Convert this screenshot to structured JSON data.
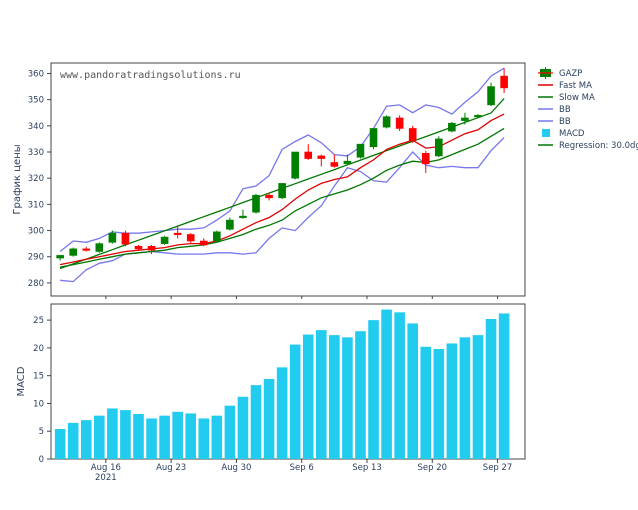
{
  "watermark": "www.pandoratradingsolutions.ru",
  "colors": {
    "up": "#008000",
    "down": "#ff0000",
    "fast_ma": "#dd0000",
    "slow_ma": "#007700",
    "bb": "#7777ee",
    "macd": "#22ccee",
    "regression": "#007700"
  },
  "chart_data": [
    {
      "type": "candlestick",
      "ylabel": "График цены",
      "ylim": [
        275,
        364
      ],
      "yticks": [
        280,
        290,
        300,
        310,
        320,
        330,
        340,
        350,
        360
      ],
      "xlim": [
        -0.7,
        35.6
      ],
      "xticks": [
        {
          "x": 3.5,
          "label": "Aug 16",
          "sub": "2021"
        },
        {
          "x": 8.5,
          "label": "Aug 23",
          "sub": ""
        },
        {
          "x": 13.5,
          "label": "Aug 30",
          "sub": ""
        },
        {
          "x": 18.5,
          "label": "Sep 6",
          "sub": ""
        },
        {
          "x": 23.5,
          "label": "Sep 13",
          "sub": ""
        },
        {
          "x": 28.5,
          "label": "Sep 20",
          "sub": ""
        },
        {
          "x": 33.5,
          "label": "Sep 27",
          "sub": ""
        }
      ],
      "legend": [
        "GAZP",
        "Fast MA",
        "Slow MA",
        "BB",
        "BB",
        "MACD",
        "Regression: 30.0dg"
      ],
      "candles": [
        {
          "o": 289.5,
          "h": 290.5,
          "l": 288.5,
          "c": 290.5
        },
        {
          "o": 290.5,
          "h": 293.5,
          "l": 290.0,
          "c": 293.0
        },
        {
          "o": 293.0,
          "h": 293.8,
          "l": 292.0,
          "c": 292.8
        },
        {
          "o": 292.0,
          "h": 295.5,
          "l": 291.5,
          "c": 295.0
        },
        {
          "o": 295.5,
          "h": 300.0,
          "l": 295.0,
          "c": 299.0
        },
        {
          "o": 299.0,
          "h": 300.0,
          "l": 294.0,
          "c": 294.8
        },
        {
          "o": 294.0,
          "h": 294.5,
          "l": 292.5,
          "c": 293.0
        },
        {
          "o": 294.0,
          "h": 294.5,
          "l": 291.0,
          "c": 292.5
        },
        {
          "o": 295.0,
          "h": 298.0,
          "l": 294.5,
          "c": 297.5
        },
        {
          "o": 299.0,
          "h": 302.0,
          "l": 297.0,
          "c": 298.8
        },
        {
          "o": 298.5,
          "h": 299.0,
          "l": 295.0,
          "c": 296.0
        },
        {
          "o": 296.0,
          "h": 297.0,
          "l": 294.0,
          "c": 294.5
        },
        {
          "o": 296.0,
          "h": 300.0,
          "l": 295.5,
          "c": 299.5
        },
        {
          "o": 300.5,
          "h": 305.0,
          "l": 300.0,
          "c": 304.0
        },
        {
          "o": 305.5,
          "h": 308.0,
          "l": 304.5,
          "c": 305.5
        },
        {
          "o": 307.0,
          "h": 314.0,
          "l": 306.5,
          "c": 313.5
        },
        {
          "o": 313.5,
          "h": 314.5,
          "l": 311.5,
          "c": 312.5
        },
        {
          "o": 312.5,
          "h": 318.0,
          "l": 312.0,
          "c": 318.0
        },
        {
          "o": 320.0,
          "h": 330.0,
          "l": 319.5,
          "c": 330.0
        },
        {
          "o": 330.0,
          "h": 333.0,
          "l": 327.0,
          "c": 327.5
        },
        {
          "o": 328.5,
          "h": 329.0,
          "l": 324.5,
          "c": 327.5
        },
        {
          "o": 326.0,
          "h": 329.0,
          "l": 324.0,
          "c": 324.5
        },
        {
          "o": 325.5,
          "h": 329.0,
          "l": 325.0,
          "c": 326.5
        },
        {
          "o": 328.0,
          "h": 333.0,
          "l": 327.5,
          "c": 333.0
        },
        {
          "o": 332.0,
          "h": 339.0,
          "l": 331.0,
          "c": 339.0
        },
        {
          "o": 339.5,
          "h": 344.0,
          "l": 339.0,
          "c": 343.5
        },
        {
          "o": 343.0,
          "h": 344.0,
          "l": 338.0,
          "c": 339.0
        },
        {
          "o": 339.0,
          "h": 340.0,
          "l": 333.5,
          "c": 334.5
        },
        {
          "o": 329.5,
          "h": 330.5,
          "l": 322.0,
          "c": 325.5
        },
        {
          "o": 328.5,
          "h": 336.0,
          "l": 328.0,
          "c": 335.0
        },
        {
          "o": 338.0,
          "h": 341.5,
          "l": 337.5,
          "c": 341.0
        },
        {
          "o": 342.0,
          "h": 345.0,
          "l": 340.5,
          "c": 343.0
        },
        {
          "o": 343.5,
          "h": 344.5,
          "l": 343.0,
          "c": 344.0
        },
        {
          "o": 348.0,
          "h": 356.5,
          "l": 347.5,
          "c": 355.0
        },
        {
          "o": 359.0,
          "h": 362.0,
          "l": 352.5,
          "c": 354.5
        }
      ],
      "fast_ma": [
        287,
        288,
        289,
        290,
        291,
        292,
        292.5,
        293,
        293.5,
        294.5,
        295,
        295,
        296,
        298,
        300.5,
        303,
        305,
        308,
        312,
        315.5,
        318,
        319.5,
        320.5,
        324,
        327,
        331,
        333,
        334.5,
        331.5,
        332,
        334.5,
        337,
        338.5,
        342,
        344.5
      ],
      "slow_ma": [
        286,
        287,
        288,
        289,
        290,
        291,
        291.5,
        292,
        292.5,
        293.5,
        294,
        294.5,
        295.5,
        297,
        298.5,
        300.5,
        302,
        304,
        307.5,
        310,
        312.5,
        314,
        315.5,
        317.5,
        320,
        323,
        325,
        326.5,
        326,
        327,
        329,
        331,
        333,
        336,
        339
      ],
      "bb_upper": [
        292,
        296,
        295.5,
        297,
        299.5,
        299,
        299,
        299.5,
        300,
        300.5,
        300.5,
        301,
        304,
        307.5,
        316,
        317,
        321,
        331,
        334,
        336.5,
        333.5,
        329,
        328.5,
        332,
        339,
        347.5,
        348,
        345,
        348,
        347,
        344.5,
        349,
        353,
        359,
        362
      ],
      "bb_lower": [
        281,
        280.5,
        285,
        287.5,
        288.5,
        291,
        291.5,
        292,
        291.5,
        291,
        291,
        291,
        291.5,
        291.5,
        291,
        291.5,
        297,
        301,
        300,
        305,
        309.5,
        317,
        324,
        322.5,
        319,
        318.5,
        324,
        330,
        325,
        324,
        324.5,
        324,
        324,
        330.5,
        335.5
      ],
      "regression": [
        285.5,
        287.3,
        289.1,
        290.9,
        292.7,
        294.5,
        296.3,
        298.1,
        299.9,
        301.7,
        303.5,
        305.3,
        307.1,
        308.9,
        310.7,
        312.5,
        314.3,
        316.1,
        317.9,
        319.7,
        321.5,
        323.3,
        325.1,
        326.9,
        328.7,
        330.5,
        332.3,
        334.1,
        335.9,
        337.7,
        339.5,
        341.3,
        343.1,
        344.9,
        350.4
      ]
    },
    {
      "type": "bar",
      "ylabel": "MACD",
      "ylim": [
        0,
        27.9
      ],
      "yticks": [
        0,
        5,
        10,
        15,
        20,
        25
      ],
      "values": [
        5.4,
        6.5,
        7.0,
        7.8,
        9.1,
        8.8,
        8.1,
        7.3,
        7.8,
        8.5,
        8.2,
        7.3,
        7.8,
        9.6,
        11.2,
        13.3,
        14.4,
        16.5,
        20.6,
        22.4,
        23.2,
        22.3,
        21.9,
        23.0,
        25.0,
        26.9,
        26.4,
        24.4,
        20.2,
        19.8,
        20.8,
        21.9,
        22.3,
        25.2,
        26.2
      ]
    }
  ]
}
